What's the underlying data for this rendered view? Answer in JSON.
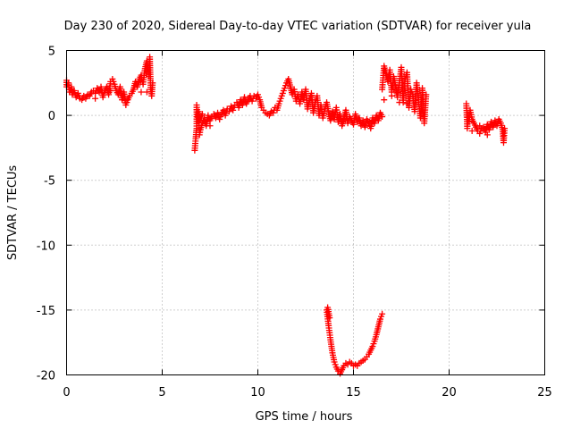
{
  "chart_data": {
    "type": "scatter",
    "title": "Day 230 of 2020, Sidereal Day-to-day VTEC variation (SDTVAR) for receiver yula",
    "xlabel": "GPS time / hours",
    "ylabel": "SDTVAR / TECUs",
    "xlim": [
      0,
      25
    ],
    "ylim": [
      -20,
      5
    ],
    "xticks": [
      0,
      5,
      10,
      15,
      20,
      25
    ],
    "xtick_labels": [
      "0",
      "5",
      "10",
      "15",
      "20",
      "25"
    ],
    "yticks": [
      -20,
      -15,
      -10,
      -5,
      0,
      5
    ],
    "ytick_labels": [
      "-20",
      "-15",
      "-10",
      "-5",
      "0",
      "5"
    ],
    "grid": true,
    "marker": "plus",
    "color": "#ff0000",
    "series": [
      {
        "name": "seg1",
        "points": [
          [
            0,
            2.7
          ],
          [
            0,
            2.2
          ],
          [
            0.1,
            2.5
          ],
          [
            0.15,
            1.8
          ],
          [
            0.25,
            2.2
          ],
          [
            0.3,
            1.6
          ],
          [
            0.4,
            1.9
          ],
          [
            0.5,
            1.4
          ],
          [
            0.6,
            1.7
          ],
          [
            0.7,
            1.3
          ],
          [
            0.8,
            1.2
          ],
          [
            0.9,
            1.5
          ],
          [
            1.0,
            1.3
          ],
          [
            1.1,
            1.6
          ],
          [
            1.2,
            1.5
          ],
          [
            1.3,
            1.8
          ],
          [
            1.4,
            1.9
          ],
          [
            1.5,
            1.7
          ],
          [
            1.6,
            2.1
          ],
          [
            1.7,
            1.8
          ],
          [
            1.8,
            2.2
          ],
          [
            1.9,
            1.4
          ],
          [
            2.0,
            1.9
          ],
          [
            2.1,
            2.2
          ],
          [
            2.2,
            1.6
          ],
          [
            2.3,
            2.6
          ],
          [
            2.4,
            2.8
          ],
          [
            2.5,
            2.4
          ],
          [
            2.6,
            1.9
          ],
          [
            2.7,
            1.6
          ],
          [
            2.8,
            2.2
          ],
          [
            2.9,
            1.2
          ],
          [
            3.0,
            1.8
          ],
          [
            3.1,
            0.8
          ],
          [
            3.2,
            1.2
          ],
          [
            3.3,
            1.5
          ],
          [
            3.4,
            1.7
          ],
          [
            3.5,
            2.0
          ],
          [
            3.6,
            2.6
          ],
          [
            3.7,
            2.2
          ],
          [
            3.8,
            2.8
          ],
          [
            3.9,
            3.1
          ],
          [
            4.0,
            2.4
          ],
          [
            4.1,
            3.6
          ],
          [
            4.2,
            4.2
          ],
          [
            4.3,
            3.0
          ],
          [
            4.35,
            4.5
          ],
          [
            4.4,
            2.0
          ],
          [
            4.45,
            1.5
          ],
          [
            4.5,
            2.5
          ],
          [
            3.9,
            1.8
          ],
          [
            4.2,
            1.8
          ],
          [
            1.5,
            1.3
          ],
          [
            2.3,
            1.9
          ]
        ]
      },
      {
        "name": "seg2",
        "points": [
          [
            6.7,
            -2.7
          ],
          [
            6.75,
            -1.8
          ],
          [
            6.8,
            -1.0
          ],
          [
            6.8,
            0.8
          ],
          [
            6.85,
            -0.3
          ],
          [
            6.9,
            0.3
          ],
          [
            6.95,
            -1.5
          ],
          [
            7.0,
            -1.1
          ],
          [
            7.1,
            -0.6
          ],
          [
            7.2,
            -0.2
          ],
          [
            7.3,
            -0.8
          ],
          [
            7.4,
            0.0
          ],
          [
            7.5,
            -0.4
          ],
          [
            7.6,
            -0.1
          ],
          [
            7.7,
            0.1
          ],
          [
            7.8,
            -0.2
          ],
          [
            7.9,
            0.2
          ],
          [
            8.0,
            -0.3
          ],
          [
            8.1,
            0.1
          ],
          [
            8.2,
            0.4
          ],
          [
            8.3,
            0.0
          ],
          [
            8.4,
            0.5
          ],
          [
            8.5,
            0.3
          ],
          [
            8.6,
            0.7
          ],
          [
            8.7,
            0.4
          ],
          [
            8.8,
            0.8
          ],
          [
            8.9,
            1.0
          ],
          [
            9.0,
            0.6
          ],
          [
            9.1,
            1.2
          ],
          [
            9.2,
            0.8
          ],
          [
            9.3,
            1.4
          ],
          [
            9.4,
            0.9
          ],
          [
            9.5,
            1.2
          ],
          [
            9.6,
            1.5
          ],
          [
            9.7,
            1.1
          ],
          [
            9.8,
            1.5
          ],
          [
            9.9,
            1.3
          ],
          [
            10.0,
            1.6
          ],
          [
            10.1,
            1.2
          ],
          [
            10.2,
            0.6
          ],
          [
            10.3,
            0.4
          ],
          [
            10.4,
            0.2
          ],
          [
            10.5,
            0.1
          ],
          [
            10.6,
            0.0
          ],
          [
            10.7,
            0.3
          ],
          [
            10.8,
            0.2
          ],
          [
            10.9,
            0.6
          ],
          [
            11.0,
            0.4
          ],
          [
            11.1,
            0.9
          ],
          [
            11.2,
            1.3
          ],
          [
            11.3,
            1.7
          ],
          [
            11.4,
            2.1
          ],
          [
            11.5,
            2.5
          ],
          [
            11.6,
            2.8
          ],
          [
            11.7,
            2.2
          ],
          [
            11.8,
            1.6
          ],
          [
            11.9,
            2.0
          ],
          [
            12.0,
            1.1
          ],
          [
            12.1,
            1.6
          ],
          [
            12.2,
            0.9
          ],
          [
            12.3,
            1.8
          ],
          [
            12.4,
            1.2
          ],
          [
            12.5,
            2.0
          ],
          [
            12.6,
            0.5
          ],
          [
            12.7,
            1.3
          ],
          [
            12.8,
            1.7
          ],
          [
            12.9,
            0.2
          ],
          [
            13.0,
            1.0
          ],
          [
            13.1,
            1.5
          ],
          [
            13.2,
            0.0
          ],
          [
            13.3,
            0.8
          ],
          [
            13.4,
            -0.2
          ],
          [
            13.5,
            0.5
          ],
          [
            13.6,
            1.0
          ],
          [
            13.7,
            0.2
          ],
          [
            13.8,
            -0.4
          ],
          [
            13.9,
            0.3
          ],
          [
            14.0,
            -0.3
          ],
          [
            14.1,
            0.6
          ],
          [
            14.2,
            -0.5
          ],
          [
            14.3,
            0.1
          ],
          [
            14.4,
            -0.8
          ],
          [
            14.5,
            -0.2
          ],
          [
            14.6,
            0.4
          ],
          [
            14.7,
            -0.6
          ],
          [
            14.8,
            -0.1
          ],
          [
            14.9,
            -0.4
          ],
          [
            15.0,
            -0.7
          ],
          [
            15.1,
            0.1
          ],
          [
            15.2,
            -0.5
          ],
          [
            15.3,
            -0.2
          ],
          [
            15.4,
            -0.8
          ],
          [
            15.5,
            -0.4
          ],
          [
            15.6,
            -0.9
          ],
          [
            15.7,
            -0.3
          ],
          [
            15.8,
            -0.6
          ],
          [
            15.9,
            -1.0
          ],
          [
            16.0,
            -0.2
          ],
          [
            16.1,
            -0.6
          ],
          [
            16.2,
            0.0
          ],
          [
            16.3,
            -0.4
          ],
          [
            16.4,
            0.2
          ],
          [
            16.5,
            -0.1
          ],
          [
            6.9,
            -0.5
          ],
          [
            7.1,
            0.1
          ],
          [
            7.5,
            -0.8
          ]
        ]
      },
      {
        "name": "seg3",
        "points": [
          [
            16.5,
            2.0
          ],
          [
            16.6,
            3.8
          ],
          [
            16.7,
            3.2
          ],
          [
            16.8,
            2.6
          ],
          [
            16.9,
            3.5
          ],
          [
            17.0,
            1.8
          ],
          [
            17.1,
            3.0
          ],
          [
            17.2,
            2.2
          ],
          [
            17.3,
            1.4
          ],
          [
            17.4,
            2.5
          ],
          [
            17.5,
            3.7
          ],
          [
            17.6,
            1.0
          ],
          [
            17.7,
            2.8
          ],
          [
            17.8,
            3.3
          ],
          [
            17.9,
            0.6
          ],
          [
            18.0,
            2.0
          ],
          [
            18.1,
            1.6
          ],
          [
            18.2,
            0.3
          ],
          [
            18.3,
            2.5
          ],
          [
            18.4,
            1.2
          ],
          [
            18.5,
            -0.2
          ],
          [
            18.6,
            2.1
          ],
          [
            18.7,
            -0.6
          ],
          [
            18.8,
            1.6
          ],
          [
            16.6,
            1.2
          ],
          [
            17.0,
            1.5
          ],
          [
            17.4,
            1.0
          ],
          [
            17.8,
            0.9
          ]
        ]
      },
      {
        "name": "seg4",
        "points": [
          [
            13.6,
            -15.0
          ],
          [
            13.7,
            -16.2
          ],
          [
            13.8,
            -17.3
          ],
          [
            13.9,
            -18.3
          ],
          [
            14.0,
            -19.0
          ],
          [
            14.1,
            -19.4
          ],
          [
            14.2,
            -19.7
          ],
          [
            14.3,
            -19.9
          ],
          [
            14.4,
            -19.6
          ],
          [
            14.5,
            -19.3
          ],
          [
            14.6,
            -19.1
          ],
          [
            14.7,
            -19.2
          ],
          [
            14.8,
            -19.0
          ],
          [
            14.9,
            -19.1
          ],
          [
            15.0,
            -19.3
          ],
          [
            15.1,
            -19.2
          ],
          [
            15.2,
            -19.3
          ],
          [
            15.3,
            -19.1
          ],
          [
            15.4,
            -19.0
          ],
          [
            15.5,
            -18.9
          ],
          [
            15.6,
            -18.8
          ],
          [
            15.7,
            -18.6
          ],
          [
            15.8,
            -18.4
          ],
          [
            15.9,
            -18.1
          ],
          [
            16.0,
            -17.8
          ],
          [
            16.1,
            -17.4
          ],
          [
            16.2,
            -16.9
          ],
          [
            16.3,
            -16.3
          ],
          [
            16.4,
            -15.7
          ],
          [
            16.5,
            -15.3
          ],
          [
            13.65,
            -14.8
          ],
          [
            13.75,
            -15.6
          ]
        ]
      },
      {
        "name": "seg5",
        "points": [
          [
            20.9,
            0.9
          ],
          [
            20.95,
            -1.0
          ],
          [
            21.0,
            0.2
          ],
          [
            21.05,
            -0.5
          ],
          [
            21.1,
            0.4
          ],
          [
            21.2,
            -0.3
          ],
          [
            21.3,
            -0.6
          ],
          [
            21.4,
            -0.9
          ],
          [
            21.5,
            -1.2
          ],
          [
            21.6,
            -1.4
          ],
          [
            21.7,
            -1.0
          ],
          [
            21.8,
            -0.9
          ],
          [
            21.9,
            -1.3
          ],
          [
            22.0,
            -0.7
          ],
          [
            22.1,
            -1.1
          ],
          [
            22.2,
            -0.5
          ],
          [
            22.3,
            -0.9
          ],
          [
            22.4,
            -0.4
          ],
          [
            22.5,
            -0.8
          ],
          [
            22.6,
            -0.3
          ],
          [
            22.7,
            -0.6
          ],
          [
            22.8,
            -1.1
          ],
          [
            22.85,
            -2.1
          ],
          [
            22.9,
            -1.0
          ],
          [
            21.2,
            -1.2
          ],
          [
            21.6,
            -0.8
          ],
          [
            22.0,
            -1.5
          ]
        ]
      }
    ]
  }
}
